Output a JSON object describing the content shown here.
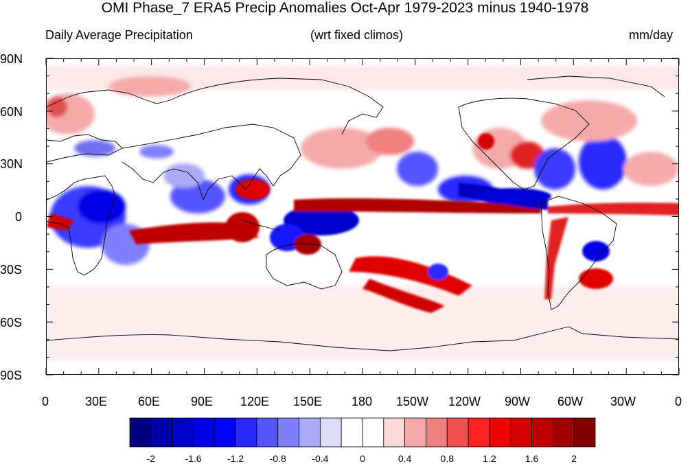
{
  "title": "OMI Phase_7 ERA5 Precip Anomalies Oct-Apr 1979-2023 minus 1940-1978",
  "subtitle_left": "Daily Average Precipitation",
  "subtitle_center": "(wrt fixed climos)",
  "subtitle_right": "mm/day",
  "lat_labels": [
    "90N",
    "60N",
    "30N",
    "0",
    "30S",
    "60S",
    "90S"
  ],
  "lon_labels": [
    "0",
    "30E",
    "60E",
    "90E",
    "120E",
    "150E",
    "180",
    "150W",
    "120W",
    "90W",
    "60W",
    "30W",
    "0"
  ],
  "colorbar": {
    "colors": [
      "#00007f",
      "#0000a8",
      "#0000cc",
      "#0000e6",
      "#0000ff",
      "#2a2aff",
      "#5555ff",
      "#8080ff",
      "#aaaaf5",
      "#dcdcf8",
      "#ffffff",
      "#ffffff",
      "#fbd9d9",
      "#f5aaaa",
      "#f07f7f",
      "#f05050",
      "#ff2222",
      "#ee0000",
      "#d60000",
      "#be0000",
      "#a00000",
      "#800000"
    ],
    "tick_labels": [
      "-2",
      "-1.6",
      "-1.2",
      "-0.8",
      "-0.4",
      "0",
      "0.4",
      "0.8",
      "1.2",
      "1.6",
      "2"
    ],
    "tick_values": [
      -2,
      -1.6,
      -1.2,
      -0.8,
      -0.4,
      0,
      0.4,
      0.8,
      1.2,
      1.6,
      2
    ]
  }
}
